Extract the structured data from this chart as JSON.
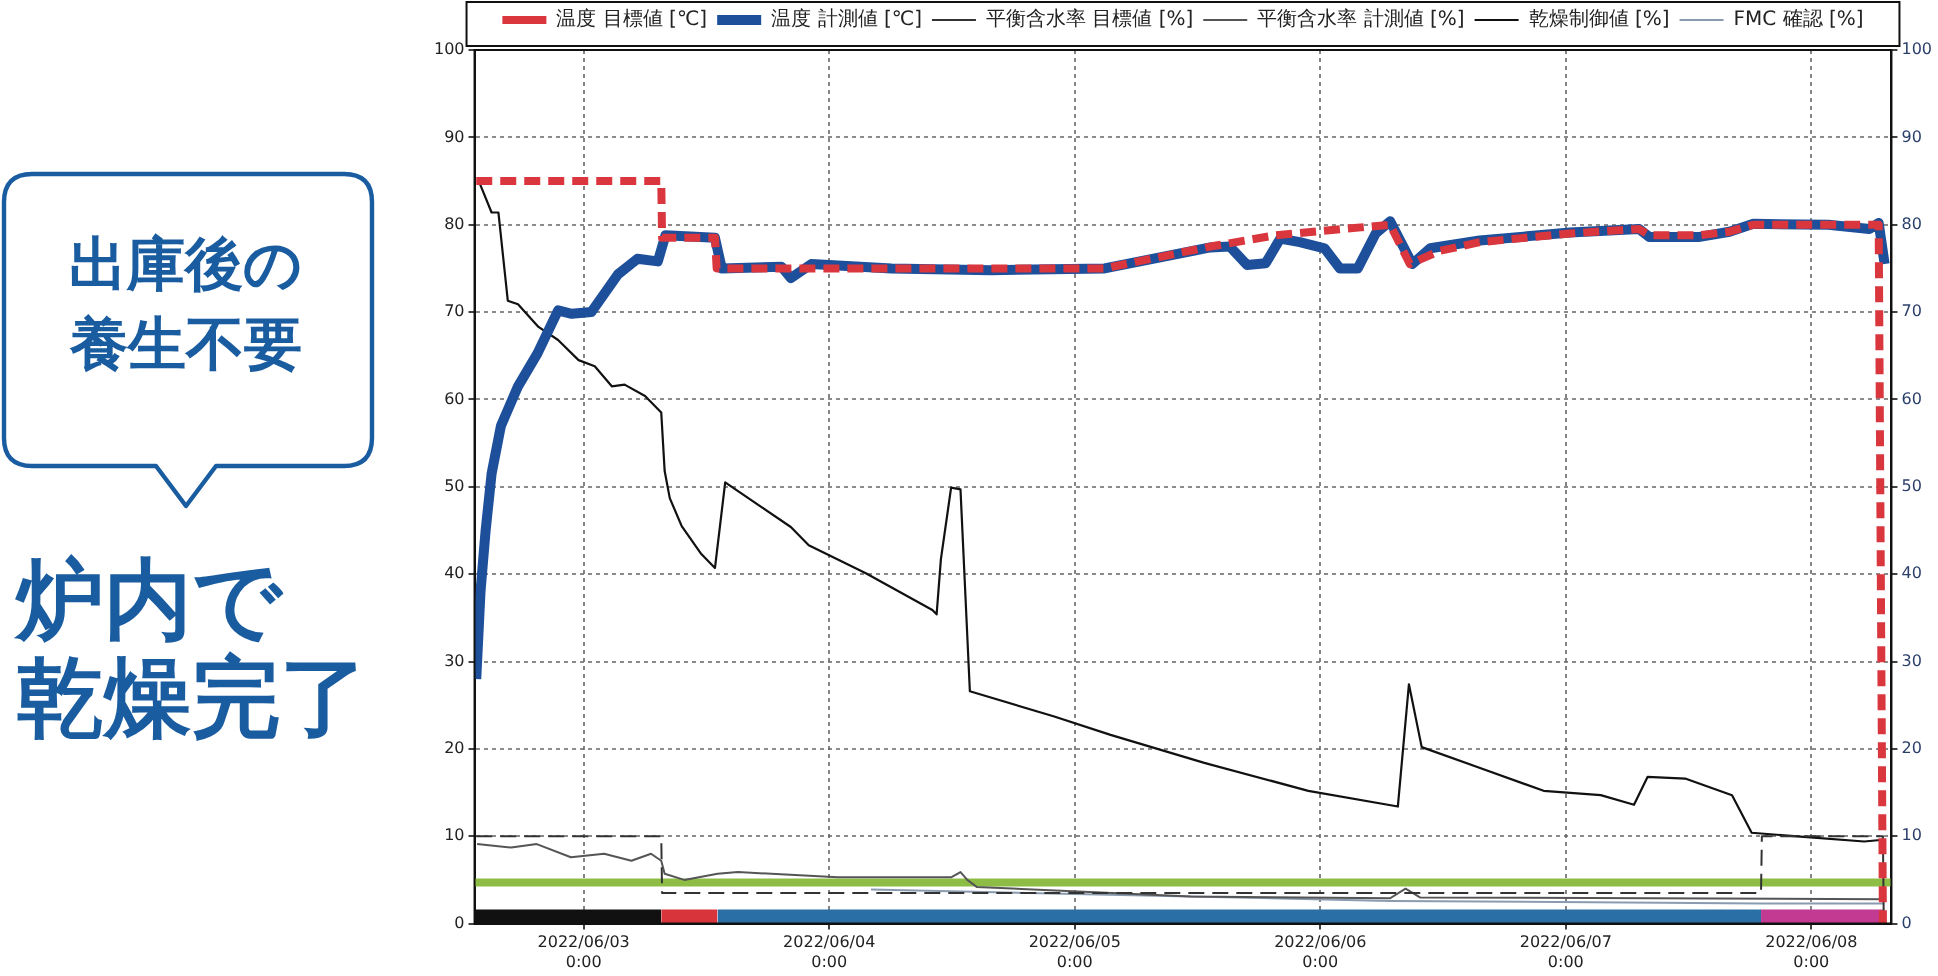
{
  "chart_data": {
    "type": "line",
    "annotations": [
      "出庫後の養生不要",
      "炉内で乾燥完了"
    ],
    "xlim": [
      "2022-06-02T13:20",
      "2022-06-08T07:50"
    ],
    "xticks": [
      {
        "value": "2022-06-03",
        "label": "2022/06/03\n0:00"
      },
      {
        "value": "2022-06-04",
        "label": "2022/06/04\n0:00"
      },
      {
        "value": "2022-06-05",
        "label": "2022/06/05\n0:00"
      },
      {
        "value": "2022-06-06",
        "label": "2022/06/06\n0:00"
      },
      {
        "value": "2022-06-07",
        "label": "2022/06/07\n0:00"
      },
      {
        "value": "2022-06-08",
        "label": "2022/06/08\n0:00"
      }
    ],
    "ylim": [
      0,
      100
    ],
    "yticks": [
      0,
      10,
      20,
      30,
      40,
      50,
      60,
      70,
      80,
      90,
      100
    ],
    "y2lim": [
      0,
      100
    ],
    "y2ticks": [
      0,
      10,
      20,
      30,
      40,
      50,
      60,
      70,
      80,
      90,
      100
    ],
    "grid": true,
    "legend": "top",
    "marker": "none",
    "line_style": "solid",
    "series": [
      {
        "name": "温度 目標値 [℃]",
        "color": "#d9363e",
        "line_style": "dashed",
        "x": [
          "2022-06-02T13:30",
          "2022-06-03T07:35",
          "2022-06-03T07:40",
          "2022-06-03T12:50",
          "2022-06-03T13:00",
          "2022-06-05T02:55",
          "2022-06-05T13:15",
          "2022-06-05T19:40",
          "2022-06-06T06:50",
          "2022-06-06T08:45",
          "2022-06-06T11:40",
          "2022-06-06T15:35",
          "2022-06-07T00:25",
          "2022-06-07T07:10",
          "2022-06-07T08:10",
          "2022-06-07T13:05",
          "2022-06-07T16:00",
          "2022-06-07T18:20",
          "2022-06-08T06:35",
          "2022-06-08T07:00"
        ],
        "values": [
          85,
          85,
          78.5,
          78.5,
          75,
          75,
          77.5,
          78.8,
          80,
          75.5,
          77,
          78,
          79,
          79.5,
          78.8,
          78.8,
          79.2,
          80,
          80,
          0
        ]
      },
      {
        "name": "温度 計測値 [℃]",
        "color": "#1d4f9a",
        "x": [
          "2022-06-02T13:30",
          "2022-06-02T13:55",
          "2022-06-02T14:25",
          "2022-06-02T15:00",
          "2022-06-02T15:55",
          "2022-06-02T17:35",
          "2022-06-02T19:30",
          "2022-06-02T21:30",
          "2022-06-02T22:50",
          "2022-06-03T00:45",
          "2022-06-03T03:20",
          "2022-06-03T05:15",
          "2022-06-03T07:15",
          "2022-06-03T08:00",
          "2022-06-03T12:50",
          "2022-06-03T13:30",
          "2022-06-03T19:20",
          "2022-06-03T20:15",
          "2022-06-03T22:15",
          "2022-06-04T06:05",
          "2022-06-04T15:50",
          "2022-06-05T02:55",
          "2022-06-05T13:15",
          "2022-06-05T15:10",
          "2022-06-05T16:50",
          "2022-06-05T18:40",
          "2022-06-05T20:05",
          "2022-06-05T22:00",
          "2022-06-06T00:25",
          "2022-06-06T01:55",
          "2022-06-06T03:40",
          "2022-06-06T05:25",
          "2022-06-06T06:50",
          "2022-06-06T09:00",
          "2022-06-06T10:45",
          "2022-06-06T15:35",
          "2022-06-07T00:25",
          "2022-06-07T07:10",
          "2022-06-07T08:10",
          "2022-06-07T13:05",
          "2022-06-07T16:00",
          "2022-06-07T18:20",
          "2022-06-08T01:40",
          "2022-06-08T05:40",
          "2022-06-08T06:35",
          "2022-06-08T07:10"
        ],
        "values": [
          28,
          38,
          45,
          51.5,
          57,
          61.5,
          65.3,
          70.2,
          69.8,
          70,
          74.3,
          76.1,
          75.8,
          78.8,
          78.5,
          75,
          75.2,
          73.9,
          75.5,
          75,
          74.8,
          75,
          77.4,
          77.5,
          75.4,
          75.6,
          78.4,
          78,
          77.3,
          75,
          75,
          79,
          80.4,
          75.5,
          77.3,
          78.2,
          79.1,
          79.5,
          78.6,
          78.6,
          79.2,
          80.1,
          80,
          79.5,
          80.2,
          75.5
        ]
      },
      {
        "name": "平衡含水率 目標値 [%]",
        "color": "#333333",
        "line_style": "dashed",
        "x": [
          "2022-06-02T13:30",
          "2022-06-03T07:35",
          "2022-06-03T07:40",
          "2022-06-07T19:05",
          "2022-06-07T19:10",
          "2022-06-08T07:00",
          "2022-06-08T07:05"
        ],
        "values": [
          10,
          10,
          3.5,
          3.5,
          10,
          10,
          0
        ]
      },
      {
        "name": "平衡含水率 計測値 [%]",
        "color": "#555555",
        "x": [
          "2022-06-02T13:35",
          "2022-06-02T16:55",
          "2022-06-02T19:25",
          "2022-06-02T22:45",
          "2022-06-03T02:00",
          "2022-06-03T04:40",
          "2022-06-03T06:35",
          "2022-06-03T07:35",
          "2022-06-03T07:55",
          "2022-06-03T09:50",
          "2022-06-03T13:05",
          "2022-06-03T15:05",
          "2022-06-04T00:50",
          "2022-06-04T11:55",
          "2022-06-04T12:50",
          "2022-06-04T13:30",
          "2022-06-04T14:25",
          "2022-06-05T11:20",
          "2022-06-06T06:50",
          "2022-06-06T08:20",
          "2022-06-06T09:45",
          "2022-06-08T07:05"
        ],
        "values": [
          9.1,
          8.7,
          9.1,
          7.6,
          8,
          7.2,
          8,
          7.2,
          5.7,
          5,
          5.7,
          5.9,
          5.3,
          5.3,
          5.9,
          5,
          4.2,
          3.1,
          2.9,
          4,
          3,
          2.8
        ]
      },
      {
        "name": "乾燥制御値 [%]",
        "color": "#111111",
        "x": [
          "2022-06-02T13:45",
          "2022-06-02T15:00",
          "2022-06-02T15:40",
          "2022-06-02T16:35",
          "2022-06-02T17:35",
          "2022-06-02T19:35",
          "2022-06-02T21:30",
          "2022-06-02T23:30",
          "2022-06-03T01:05",
          "2022-06-03T02:45",
          "2022-06-03T04:00",
          "2022-06-03T06:00",
          "2022-06-03T07:35",
          "2022-06-03T07:55",
          "2022-06-03T08:25",
          "2022-06-03T09:35",
          "2022-06-03T11:30",
          "2022-06-03T12:50",
          "2022-06-03T13:50",
          "2022-06-03T20:15",
          "2022-06-03T22:00",
          "2022-06-04T03:35",
          "2022-06-04T10:05",
          "2022-06-04T10:30",
          "2022-06-04T10:55",
          "2022-06-04T11:55",
          "2022-06-04T12:50",
          "2022-06-04T13:45",
          "2022-06-04T22:00",
          "2022-06-05T03:30",
          "2022-06-05T12:40",
          "2022-06-05T22:50",
          "2022-06-06T07:35",
          "2022-06-06T08:40",
          "2022-06-06T09:55",
          "2022-06-06T15:25",
          "2022-06-06T21:50",
          "2022-06-07T03:25",
          "2022-06-07T06:40",
          "2022-06-07T08:00",
          "2022-06-07T11:40",
          "2022-06-07T16:15",
          "2022-06-07T18:10",
          "2022-06-07T23:35",
          "2022-06-08T05:10",
          "2022-06-08T07:00"
        ],
        "values": [
          85,
          81.4,
          81.4,
          71.3,
          70.9,
          68.3,
          66.8,
          64.5,
          63.8,
          61.5,
          61.7,
          60.4,
          58.5,
          51.8,
          48.7,
          45.5,
          42.3,
          40.7,
          50.5,
          45.4,
          43.3,
          40.1,
          35.9,
          35.4,
          41.7,
          49.9,
          49.7,
          26.6,
          23.7,
          21.6,
          18.4,
          15.2,
          13.4,
          27.4,
          20.2,
          17.9,
          15.2,
          14.7,
          13.6,
          16.8,
          16.6,
          14.7,
          10.4,
          9.9,
          9.4,
          9.6
        ]
      },
      {
        "name": "FMC 確認 [%]",
        "color": "#8a9bb0",
        "x": [
          "2022-06-04T04:05",
          "2022-06-05T11:20",
          "2022-06-06T06:50",
          "2022-06-07T19:05",
          "2022-06-08T07:05"
        ],
        "values": [
          3.9,
          3.1,
          2.6,
          2.3,
          2.3
        ]
      },
      {
        "type": "area",
        "color": "#111111",
        "x": [
          "2022-06-02T13:20",
          "2022-06-03T07:35"
        ],
        "values": [
          1.6,
          1.6
        ]
      },
      {
        "type": "area",
        "color": "#d8343c",
        "x": [
          "2022-06-03T07:35",
          "2022-06-03T13:05"
        ],
        "values": [
          1.6,
          1.6
        ]
      },
      {
        "type": "area",
        "color": "#2a6fa6",
        "x": [
          "2022-06-03T13:05",
          "2022-06-07T19:05"
        ],
        "values": [
          1.6,
          1.6
        ]
      },
      {
        "type": "area",
        "color": "#c23a91",
        "x": [
          "2022-06-07T19:05",
          "2022-06-08T07:00"
        ],
        "values": [
          1.6,
          1.6
        ]
      }
    ],
    "ref_lines": [
      {
        "axis": "y",
        "value": 4.7,
        "color": "#8dbd45"
      }
    ]
  }
}
